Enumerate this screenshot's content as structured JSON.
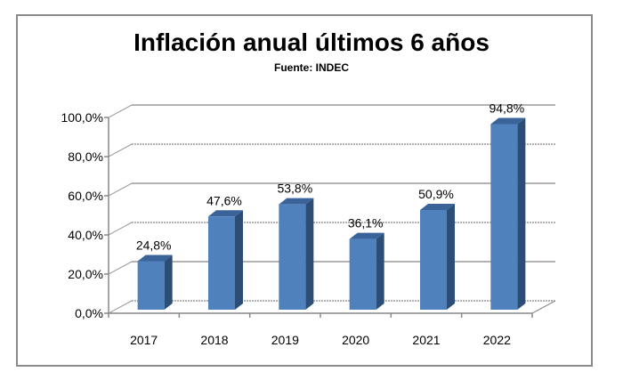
{
  "chart_data": {
    "type": "bar",
    "title": "Inflación anual últimos 6 años",
    "subtitle": "Fuente: INDEC",
    "categories": [
      "2017",
      "2018",
      "2019",
      "2020",
      "2021",
      "2022"
    ],
    "values": [
      24.8,
      47.6,
      53.8,
      36.1,
      50.9,
      94.8
    ],
    "data_labels": [
      "24,8%",
      "47,6%",
      "53,8%",
      "36,1%",
      "50,9%",
      "94,8%"
    ],
    "yticks": [
      0,
      20,
      40,
      60,
      80,
      100
    ],
    "ytick_labels": [
      "0,0%",
      "20,0%",
      "40,0%",
      "60,0%",
      "80,0%",
      "100,0%"
    ],
    "ylim": [
      0,
      100
    ],
    "xlabel": "",
    "ylabel": "",
    "grid": true,
    "bar_color": "#4f81bd",
    "bar_side_color": "#2c4d75",
    "bar_top_color": "#3a6399"
  }
}
